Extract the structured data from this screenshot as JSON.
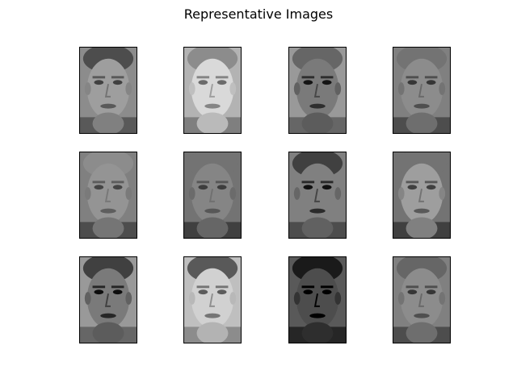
{
  "figure": {
    "title": "Representative Images"
  },
  "grid": {
    "rows": 3,
    "columns": 4,
    "panels": [
      {
        "tone": 0.62,
        "hair": 0.3,
        "bg": 0.55,
        "contrast": 0.45
      },
      {
        "tone": 0.85,
        "hair": 0.55,
        "bg": 0.7,
        "contrast": 0.55
      },
      {
        "tone": 0.48,
        "hair": 0.4,
        "bg": 0.6,
        "contrast": 0.5
      },
      {
        "tone": 0.55,
        "hair": 0.45,
        "bg": 0.5,
        "contrast": 0.4
      },
      {
        "tone": 0.58,
        "hair": 0.55,
        "bg": 0.5,
        "contrast": 0.35
      },
      {
        "tone": 0.52,
        "hair": 0.45,
        "bg": 0.45,
        "contrast": 0.3
      },
      {
        "tone": 0.5,
        "hair": 0.25,
        "bg": 0.5,
        "contrast": 0.55
      },
      {
        "tone": 0.62,
        "hair": 0.45,
        "bg": 0.45,
        "contrast": 0.45
      },
      {
        "tone": 0.48,
        "hair": 0.25,
        "bg": 0.6,
        "contrast": 0.55
      },
      {
        "tone": 0.82,
        "hair": 0.35,
        "bg": 0.75,
        "contrast": 0.6
      },
      {
        "tone": 0.3,
        "hair": 0.1,
        "bg": 0.35,
        "contrast": 0.65
      },
      {
        "tone": 0.55,
        "hair": 0.4,
        "bg": 0.5,
        "contrast": 0.4
      }
    ]
  }
}
